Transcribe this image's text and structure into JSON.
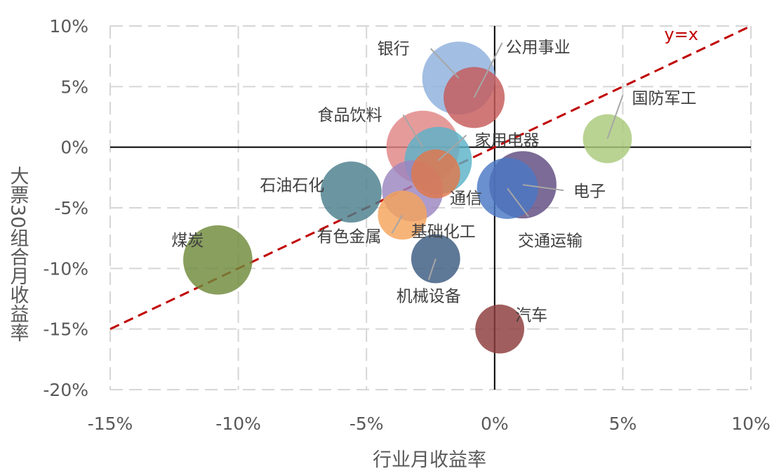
{
  "chart_data": {
    "type": "scatter",
    "subtype": "bubble",
    "xlabel": "行业月收益率",
    "ylabel": "大票30组合月收益率",
    "xlim": [
      -0.15,
      0.1
    ],
    "ylim": [
      -0.2,
      0.1
    ],
    "xticks": [
      -0.15,
      -0.1,
      -0.05,
      0,
      0.05,
      0.1
    ],
    "xtick_labels": [
      "-15%",
      "-10%",
      "-5%",
      "0%",
      "5%",
      "10%"
    ],
    "yticks": [
      0.1,
      0.05,
      0,
      -0.05,
      -0.1,
      -0.15,
      -0.2
    ],
    "ytick_labels": [
      "10%",
      "5%",
      "0%",
      "-5%",
      "-10%",
      "-15%",
      "-20%"
    ],
    "grid": true,
    "grid_style": "dashed",
    "reference_line": {
      "label": "y=x",
      "color": "#c00000",
      "style": "dashed"
    },
    "points": [
      {
        "label": "银行",
        "x": -0.014,
        "y": 0.057,
        "size": 1.0,
        "color": "#8eb0dd"
      },
      {
        "label": "公用事业",
        "x": -0.008,
        "y": 0.041,
        "size": 0.7,
        "color": "#c65a5a"
      },
      {
        "label": "食品饮料",
        "x": -0.028,
        "y": 0.0,
        "size": 1.0,
        "color": "#e08585"
      },
      {
        "label": "家用电器",
        "x": -0.022,
        "y": -0.011,
        "size": 0.85,
        "color": "#5ab2c8"
      },
      {
        "label": "国防军工",
        "x": 0.044,
        "y": 0.007,
        "size": 0.45,
        "color": "#a9c97a"
      },
      {
        "label": "石油石化",
        "x": -0.056,
        "y": -0.037,
        "size": 0.7,
        "color": "#4a7f8c"
      },
      {
        "label": "通信",
        "x": -0.032,
        "y": -0.036,
        "size": 0.7,
        "color": "#9b85bf"
      },
      {
        "label": "基础化工",
        "x": -0.023,
        "y": -0.022,
        "size": 0.45,
        "color": "#e0774a"
      },
      {
        "label": "电子",
        "x": 0.011,
        "y": -0.031,
        "size": 0.85,
        "color": "#5e4a7f"
      },
      {
        "label": "交通运输",
        "x": 0.005,
        "y": -0.034,
        "size": 0.7,
        "color": "#4a78c4"
      },
      {
        "label": "有色金属",
        "x": -0.036,
        "y": -0.056,
        "size": 0.45,
        "color": "#f5a35c"
      },
      {
        "label": "煤炭",
        "x": -0.108,
        "y": -0.093,
        "size": 0.9,
        "color": "#6f8a3a"
      },
      {
        "label": "机械设备",
        "x": -0.023,
        "y": -0.092,
        "size": 0.45,
        "color": "#3a5a80"
      },
      {
        "label": "汽车",
        "x": 0.002,
        "y": -0.15,
        "size": 0.45,
        "color": "#8c3a3a"
      }
    ]
  }
}
